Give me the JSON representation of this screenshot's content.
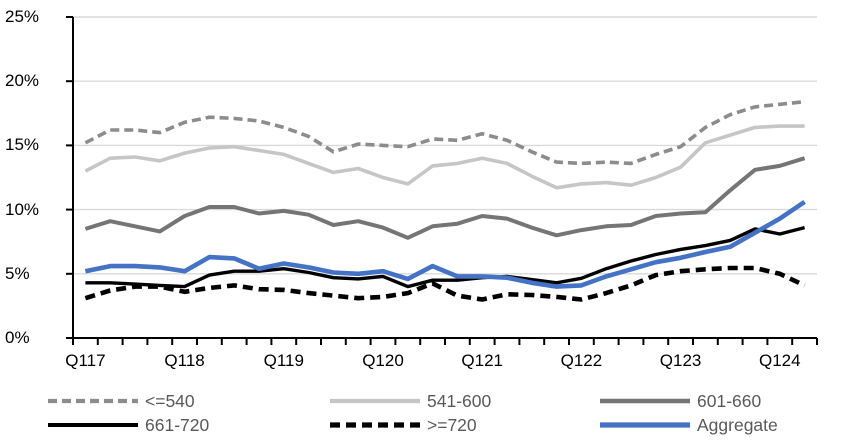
{
  "chart_data": {
    "type": "line",
    "title": "",
    "xlabel": "",
    "ylabel": "",
    "ylim": [
      0,
      25
    ],
    "y_tick_step": 5,
    "grid": "horizontal",
    "legend_position": "bottom",
    "x_categories": [
      "Q117",
      "Q217",
      "Q317",
      "Q417",
      "Q118",
      "Q218",
      "Q318",
      "Q418",
      "Q119",
      "Q219",
      "Q319",
      "Q419",
      "Q120",
      "Q220",
      "Q320",
      "Q420",
      "Q121",
      "Q221",
      "Q321",
      "Q421",
      "Q122",
      "Q222",
      "Q322",
      "Q422",
      "Q123",
      "Q223",
      "Q323",
      "Q423",
      "Q124",
      "Q224"
    ],
    "x_tick_labels": [
      {
        "index": 0,
        "label": "Q117"
      },
      {
        "index": 4,
        "label": "Q118"
      },
      {
        "index": 8,
        "label": "Q119"
      },
      {
        "index": 12,
        "label": "Q120"
      },
      {
        "index": 16,
        "label": "Q121"
      },
      {
        "index": 20,
        "label": "Q122"
      },
      {
        "index": 24,
        "label": "Q123"
      },
      {
        "index": 28,
        "label": "Q124"
      }
    ],
    "y_ticks": [
      {
        "value": 0,
        "label": "0%"
      },
      {
        "value": 5,
        "label": "5%"
      },
      {
        "value": 10,
        "label": "10%"
      },
      {
        "value": 15,
        "label": "15%"
      },
      {
        "value": 20,
        "label": "20%"
      },
      {
        "value": 25,
        "label": "25%"
      }
    ],
    "series": [
      {
        "name": "<=540",
        "color": "#8C8C8C",
        "dash": "9 5",
        "width": 3.6,
        "values": [
          15.2,
          16.2,
          16.2,
          16.0,
          16.8,
          17.2,
          17.1,
          16.9,
          16.4,
          15.7,
          14.5,
          15.1,
          15.0,
          14.9,
          15.5,
          15.4,
          15.9,
          15.4,
          14.5,
          13.7,
          13.6,
          13.7,
          13.6,
          14.3,
          14.9,
          16.4,
          17.4,
          18.0,
          18.2,
          18.4
        ]
      },
      {
        "name": "541-600",
        "color": "#C6C6C6",
        "dash": "",
        "width": 3.6,
        "values": [
          13.0,
          14.0,
          14.1,
          13.8,
          14.4,
          14.8,
          14.9,
          14.6,
          14.3,
          13.6,
          12.9,
          13.2,
          12.5,
          12.0,
          13.4,
          13.6,
          14.0,
          13.6,
          12.6,
          11.7,
          12.0,
          12.1,
          11.9,
          12.5,
          13.3,
          15.2,
          15.8,
          16.4,
          16.5,
          16.5
        ]
      },
      {
        "name": "601-660",
        "color": "#757575",
        "dash": "",
        "width": 4.0,
        "values": [
          8.5,
          9.1,
          8.7,
          8.3,
          9.5,
          10.2,
          10.2,
          9.7,
          9.9,
          9.6,
          8.8,
          9.1,
          8.6,
          7.8,
          8.7,
          8.9,
          9.5,
          9.3,
          8.6,
          8.0,
          8.4,
          8.7,
          8.8,
          9.5,
          9.7,
          9.8,
          11.5,
          13.1,
          13.4,
          14.0
        ]
      },
      {
        "name": "661-720",
        "color": "#000000",
        "dash": "",
        "width": 3.4,
        "values": [
          4.3,
          4.3,
          4.2,
          4.1,
          4.0,
          4.9,
          5.2,
          5.2,
          5.4,
          5.1,
          4.7,
          4.6,
          4.8,
          4.0,
          4.5,
          4.5,
          4.7,
          4.8,
          4.55,
          4.3,
          4.65,
          5.4,
          6.0,
          6.5,
          6.9,
          7.2,
          7.6,
          8.5,
          8.1,
          8.6
        ]
      },
      {
        "name": ">=720",
        "color": "#000000",
        "dash": "10 6",
        "width": 4.6,
        "values": [
          3.1,
          3.7,
          4.0,
          4.0,
          3.6,
          3.9,
          4.1,
          3.8,
          3.75,
          3.5,
          3.3,
          3.1,
          3.2,
          3.5,
          4.25,
          3.3,
          3.0,
          3.4,
          3.35,
          3.2,
          3.0,
          3.5,
          4.1,
          4.9,
          5.2,
          5.35,
          5.45,
          5.45,
          5.0,
          4.1
        ]
      },
      {
        "name": "Aggregate",
        "color": "#4472C4",
        "dash": "",
        "width": 4.6,
        "values": [
          5.2,
          5.6,
          5.6,
          5.5,
          5.2,
          6.3,
          6.2,
          5.4,
          5.8,
          5.5,
          5.1,
          5.0,
          5.2,
          4.6,
          5.6,
          4.8,
          4.8,
          4.7,
          4.3,
          4.0,
          4.1,
          4.8,
          5.35,
          5.9,
          6.25,
          6.7,
          7.1,
          8.2,
          9.3,
          10.6
        ]
      }
    ],
    "colors": {
      "background": "#FFFFFF",
      "gridline": "#D9D9D9",
      "axis": "#000000",
      "tick_label": "#000000",
      "legend_text": "#595959",
      "accent_blue": "#4472C4"
    }
  }
}
